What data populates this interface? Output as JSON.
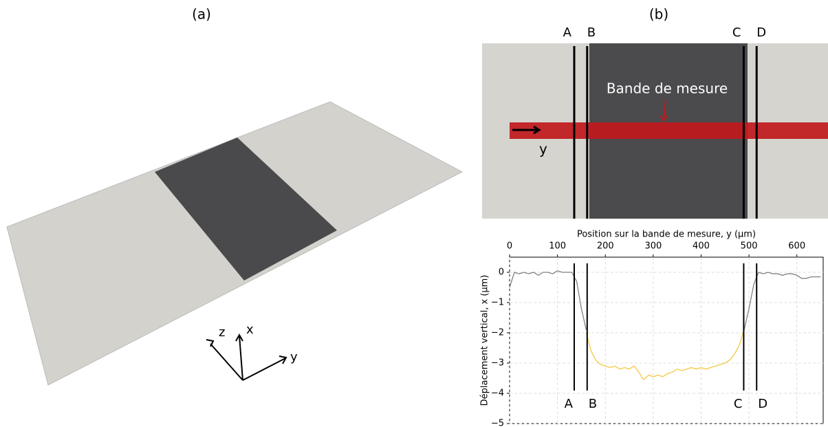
{
  "panels": {
    "a": "(a)",
    "b": "(b)"
  },
  "render_axes": [
    "z",
    "x",
    "y"
  ],
  "photo": {
    "annotation": "Bande de mesure",
    "axis": "y"
  },
  "chart_data": {
    "type": "line",
    "x_label": "Position sur la bande de mesure, y (µm)",
    "y_label": "Déplacement vertical, x (µm)",
    "x": [
      0,
      10,
      20,
      30,
      40,
      50,
      60,
      70,
      80,
      90,
      100,
      110,
      120,
      130,
      140,
      150,
      160,
      170,
      180,
      190,
      200,
      210,
      220,
      230,
      240,
      250,
      260,
      270,
      280,
      290,
      300,
      310,
      320,
      330,
      340,
      350,
      360,
      370,
      380,
      390,
      400,
      410,
      420,
      430,
      440,
      450,
      460,
      470,
      480,
      490,
      500,
      510,
      520,
      530,
      540,
      550,
      560,
      570,
      580,
      590,
      600,
      610,
      620,
      630,
      640,
      650
    ],
    "series": [
      {
        "color": "#808080",
        "values": [
          -0.5,
          0,
          -0.05,
          0,
          -0.05,
          0,
          -0.1,
          0,
          0,
          -0.05,
          0.05,
          0,
          0,
          0,
          -0.3,
          -1.2,
          -1.9,
          null,
          null,
          null,
          null,
          null,
          null,
          null,
          null,
          null,
          null,
          null,
          null,
          null,
          null,
          null,
          null,
          null,
          null,
          null,
          null,
          null,
          null,
          null,
          null,
          null,
          null,
          null,
          null,
          null,
          null,
          null,
          null,
          -1.9,
          -1.2,
          -0.4,
          0,
          -0.05,
          0,
          -0.05,
          -0.05,
          -0.1,
          -0.05,
          -0.05,
          -0.1,
          -0.2,
          -0.2,
          -0.15,
          -0.15,
          -0.15
        ]
      },
      {
        "color": "#f5c842",
        "values": [
          null,
          null,
          null,
          null,
          null,
          null,
          null,
          null,
          null,
          null,
          null,
          null,
          null,
          null,
          null,
          null,
          -2.0,
          -2.6,
          -2.9,
          -3.05,
          -3.1,
          -3.15,
          -3.1,
          -3.2,
          -3.15,
          -3.2,
          -3.1,
          -3.3,
          -3.55,
          -3.4,
          -3.45,
          -3.4,
          -3.45,
          -3.35,
          -3.3,
          -3.2,
          -3.25,
          -3.2,
          -3.15,
          -3.2,
          -3.15,
          -3.2,
          -3.15,
          -3.1,
          -3.05,
          -3.0,
          -2.9,
          -2.7,
          -2.4,
          -1.9,
          null,
          null,
          null,
          null,
          null,
          null,
          null,
          null,
          null,
          null,
          null,
          null,
          null,
          null,
          null,
          null
        ]
      }
    ],
    "markers": [
      {
        "label": "A",
        "x": 135
      },
      {
        "label": "B",
        "x": 162
      },
      {
        "label": "C",
        "x": 489
      },
      {
        "label": "D",
        "x": 516
      }
    ],
    "xlim": [
      0,
      655
    ],
    "ylim": [
      -5,
      0.5
    ],
    "xticks": [
      0,
      100,
      200,
      300,
      400,
      500,
      600
    ],
    "yticks": [
      0,
      {
        "value": -1,
        "label": "−1"
      },
      {
        "value": -2,
        "label": "−2"
      },
      {
        "value": -3,
        "label": "−3"
      },
      {
        "value": -4,
        "label": "−4"
      },
      {
        "value": -5,
        "label": "−5"
      }
    ],
    "grid": true
  }
}
